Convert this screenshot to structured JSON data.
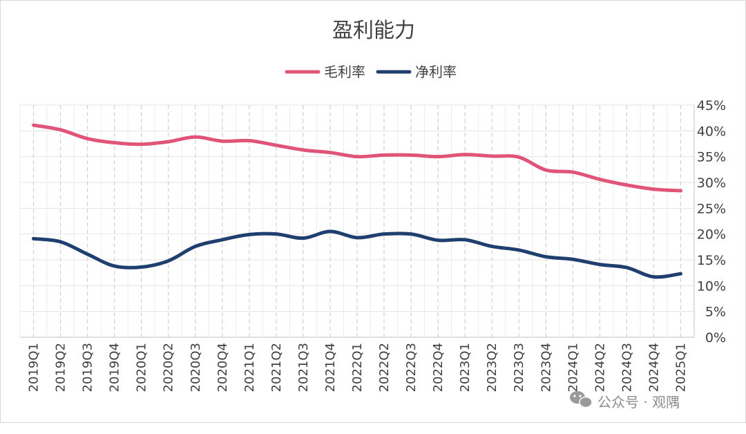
{
  "chart_data": {
    "type": "line",
    "title": "盈利能力",
    "categories": [
      "2019Q1",
      "2019Q2",
      "2019Q3",
      "2019Q4",
      "2020Q1",
      "2020Q2",
      "2020Q3",
      "2020Q4",
      "2021Q1",
      "2021Q2",
      "2021Q3",
      "2021Q4",
      "2022Q1",
      "2022Q2",
      "2022Q3",
      "2022Q4",
      "2023Q1",
      "2023Q2",
      "2023Q3",
      "2023Q4",
      "2024Q1",
      "2024Q2",
      "2024Q3",
      "2024Q4",
      "2025Q1"
    ],
    "series": [
      {
        "name": "毛利率",
        "color": "#e05478",
        "values": [
          41.1,
          40.2,
          38.5,
          37.7,
          37.4,
          37.9,
          38.8,
          38.0,
          38.1,
          37.2,
          36.3,
          35.8,
          35.0,
          35.3,
          35.3,
          35.0,
          35.4,
          35.1,
          34.9,
          32.4,
          32.0,
          30.6,
          29.5,
          28.7,
          28.4
        ]
      },
      {
        "name": "净利率",
        "color": "#1f3f6e",
        "values": [
          19.1,
          18.5,
          16.1,
          13.8,
          13.6,
          14.8,
          17.6,
          18.9,
          19.9,
          20.0,
          19.2,
          20.5,
          19.3,
          20.0,
          20.0,
          18.8,
          18.9,
          17.6,
          16.9,
          15.6,
          15.1,
          14.1,
          13.5,
          11.7,
          12.3
        ]
      }
    ],
    "yaxis": {
      "ticks": [
        "0%",
        "5%",
        "10%",
        "15%",
        "20%",
        "25%",
        "30%",
        "35%",
        "40%",
        "45%"
      ],
      "ylim": [
        0,
        45
      ],
      "position": "right"
    },
    "grid": true,
    "legend": "top-center"
  },
  "watermark": {
    "icon": "wechat-icon",
    "text": "公众号 · 观隅"
  }
}
